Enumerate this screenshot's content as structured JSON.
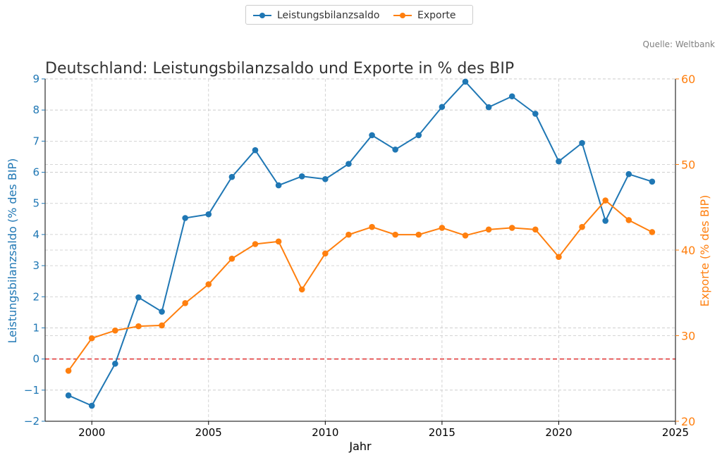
{
  "source": "Quelle: Weltbank",
  "colors": {
    "balance": "#1f77b4",
    "exports": "#ff7f0e",
    "zero_line": "#e03030",
    "grid": "#c8c8c8",
    "axis": "#000000",
    "title": "#333333"
  },
  "chart_data": {
    "type": "line",
    "title": "Deutschland: Leistungsbilanzsaldo und Exporte in % des BIP",
    "xlabel": "Jahr",
    "ylabel_left": "Leistungsbilanzsaldo (% des BIP)",
    "ylabel_right": "Exporte (% des BIP)",
    "xlim": [
      1998,
      2025
    ],
    "ylim_left": [
      -2,
      9
    ],
    "ylim_right": [
      20,
      60
    ],
    "x_ticks": [
      2000,
      2005,
      2010,
      2015,
      2020,
      2025
    ],
    "y_ticks_left": [
      -2,
      -1,
      0,
      1,
      2,
      3,
      4,
      5,
      6,
      7,
      8,
      9
    ],
    "y_ticks_left_labels": [
      "−2",
      "−1",
      "0",
      "1",
      "2",
      "3",
      "4",
      "5",
      "6",
      "7",
      "8",
      "9"
    ],
    "y_ticks_right": [
      20,
      30,
      40,
      50,
      60
    ],
    "grid": true,
    "legend_position": "top-center",
    "reference_line": {
      "axis": "left",
      "y": 0,
      "style": "dashed"
    },
    "x": [
      1999,
      2000,
      2001,
      2002,
      2003,
      2004,
      2005,
      2006,
      2007,
      2008,
      2009,
      2010,
      2011,
      2012,
      2013,
      2014,
      2015,
      2016,
      2017,
      2018,
      2019,
      2020,
      2021,
      2022,
      2023,
      2024
    ],
    "series": [
      {
        "name": "Leistungsbilanzsaldo",
        "axis": "left",
        "values": [
          -1.17,
          -1.5,
          -0.15,
          1.98,
          1.52,
          4.53,
          4.65,
          5.85,
          6.71,
          5.58,
          5.87,
          5.78,
          6.27,
          7.19,
          6.73,
          7.19,
          8.1,
          8.91,
          8.09,
          8.44,
          7.88,
          6.35,
          6.94,
          4.44,
          5.94,
          5.7
        ]
      },
      {
        "name": "Exporte",
        "axis": "right",
        "values": [
          25.9,
          29.7,
          30.6,
          31.1,
          31.2,
          33.8,
          36.0,
          39.0,
          40.7,
          41.0,
          35.4,
          39.6,
          41.8,
          42.7,
          41.8,
          41.8,
          42.6,
          41.7,
          42.4,
          42.6,
          42.4,
          39.2,
          42.7,
          45.8,
          43.5,
          42.1
        ]
      }
    ]
  }
}
